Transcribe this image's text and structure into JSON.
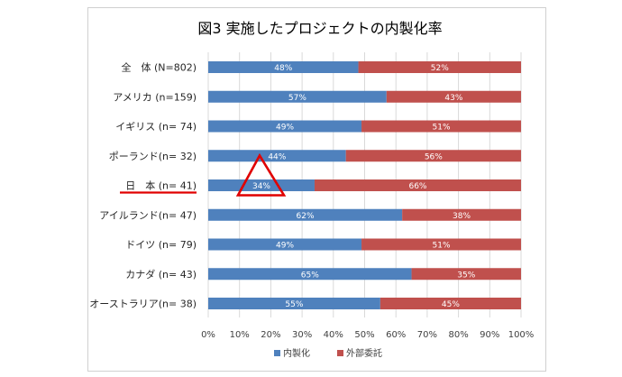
{
  "chart_data": {
    "type": "bar",
    "stacked": true,
    "orientation": "horizontal",
    "percent_stacked": true,
    "title": "図3 実施したプロジェクトの内製化率",
    "categories": [
      "全　体 (N=802)",
      "アメリカ (n=159)",
      "イギリス (n= 74)",
      "ポーランド(n= 32)",
      "日　本 (n= 41)",
      "アイルランド(n= 47)",
      "ドイツ (n= 79)",
      "カナダ (n= 43)",
      "オーストラリア(n= 38)"
    ],
    "series": [
      {
        "name": "内製化",
        "color": "#4f81bd",
        "values": [
          48,
          57,
          49,
          44,
          34,
          62,
          49,
          65,
          55
        ]
      },
      {
        "name": "外部委託",
        "color": "#c0504d",
        "values": [
          52,
          43,
          51,
          56,
          66,
          38,
          51,
          35,
          45
        ]
      }
    ],
    "data_label_suffix": "%",
    "xlim": [
      0,
      100
    ],
    "x_ticks": [
      "0%",
      "10%",
      "20%",
      "30%",
      "40%",
      "50%",
      "60%",
      "70%",
      "80%",
      "90%",
      "100%"
    ],
    "grid": "vertical",
    "legend_position": "bottom",
    "annotations": {
      "highlight_category_index": 4,
      "underline_color": "#e00000",
      "triangle_color": "#e00000"
    }
  }
}
